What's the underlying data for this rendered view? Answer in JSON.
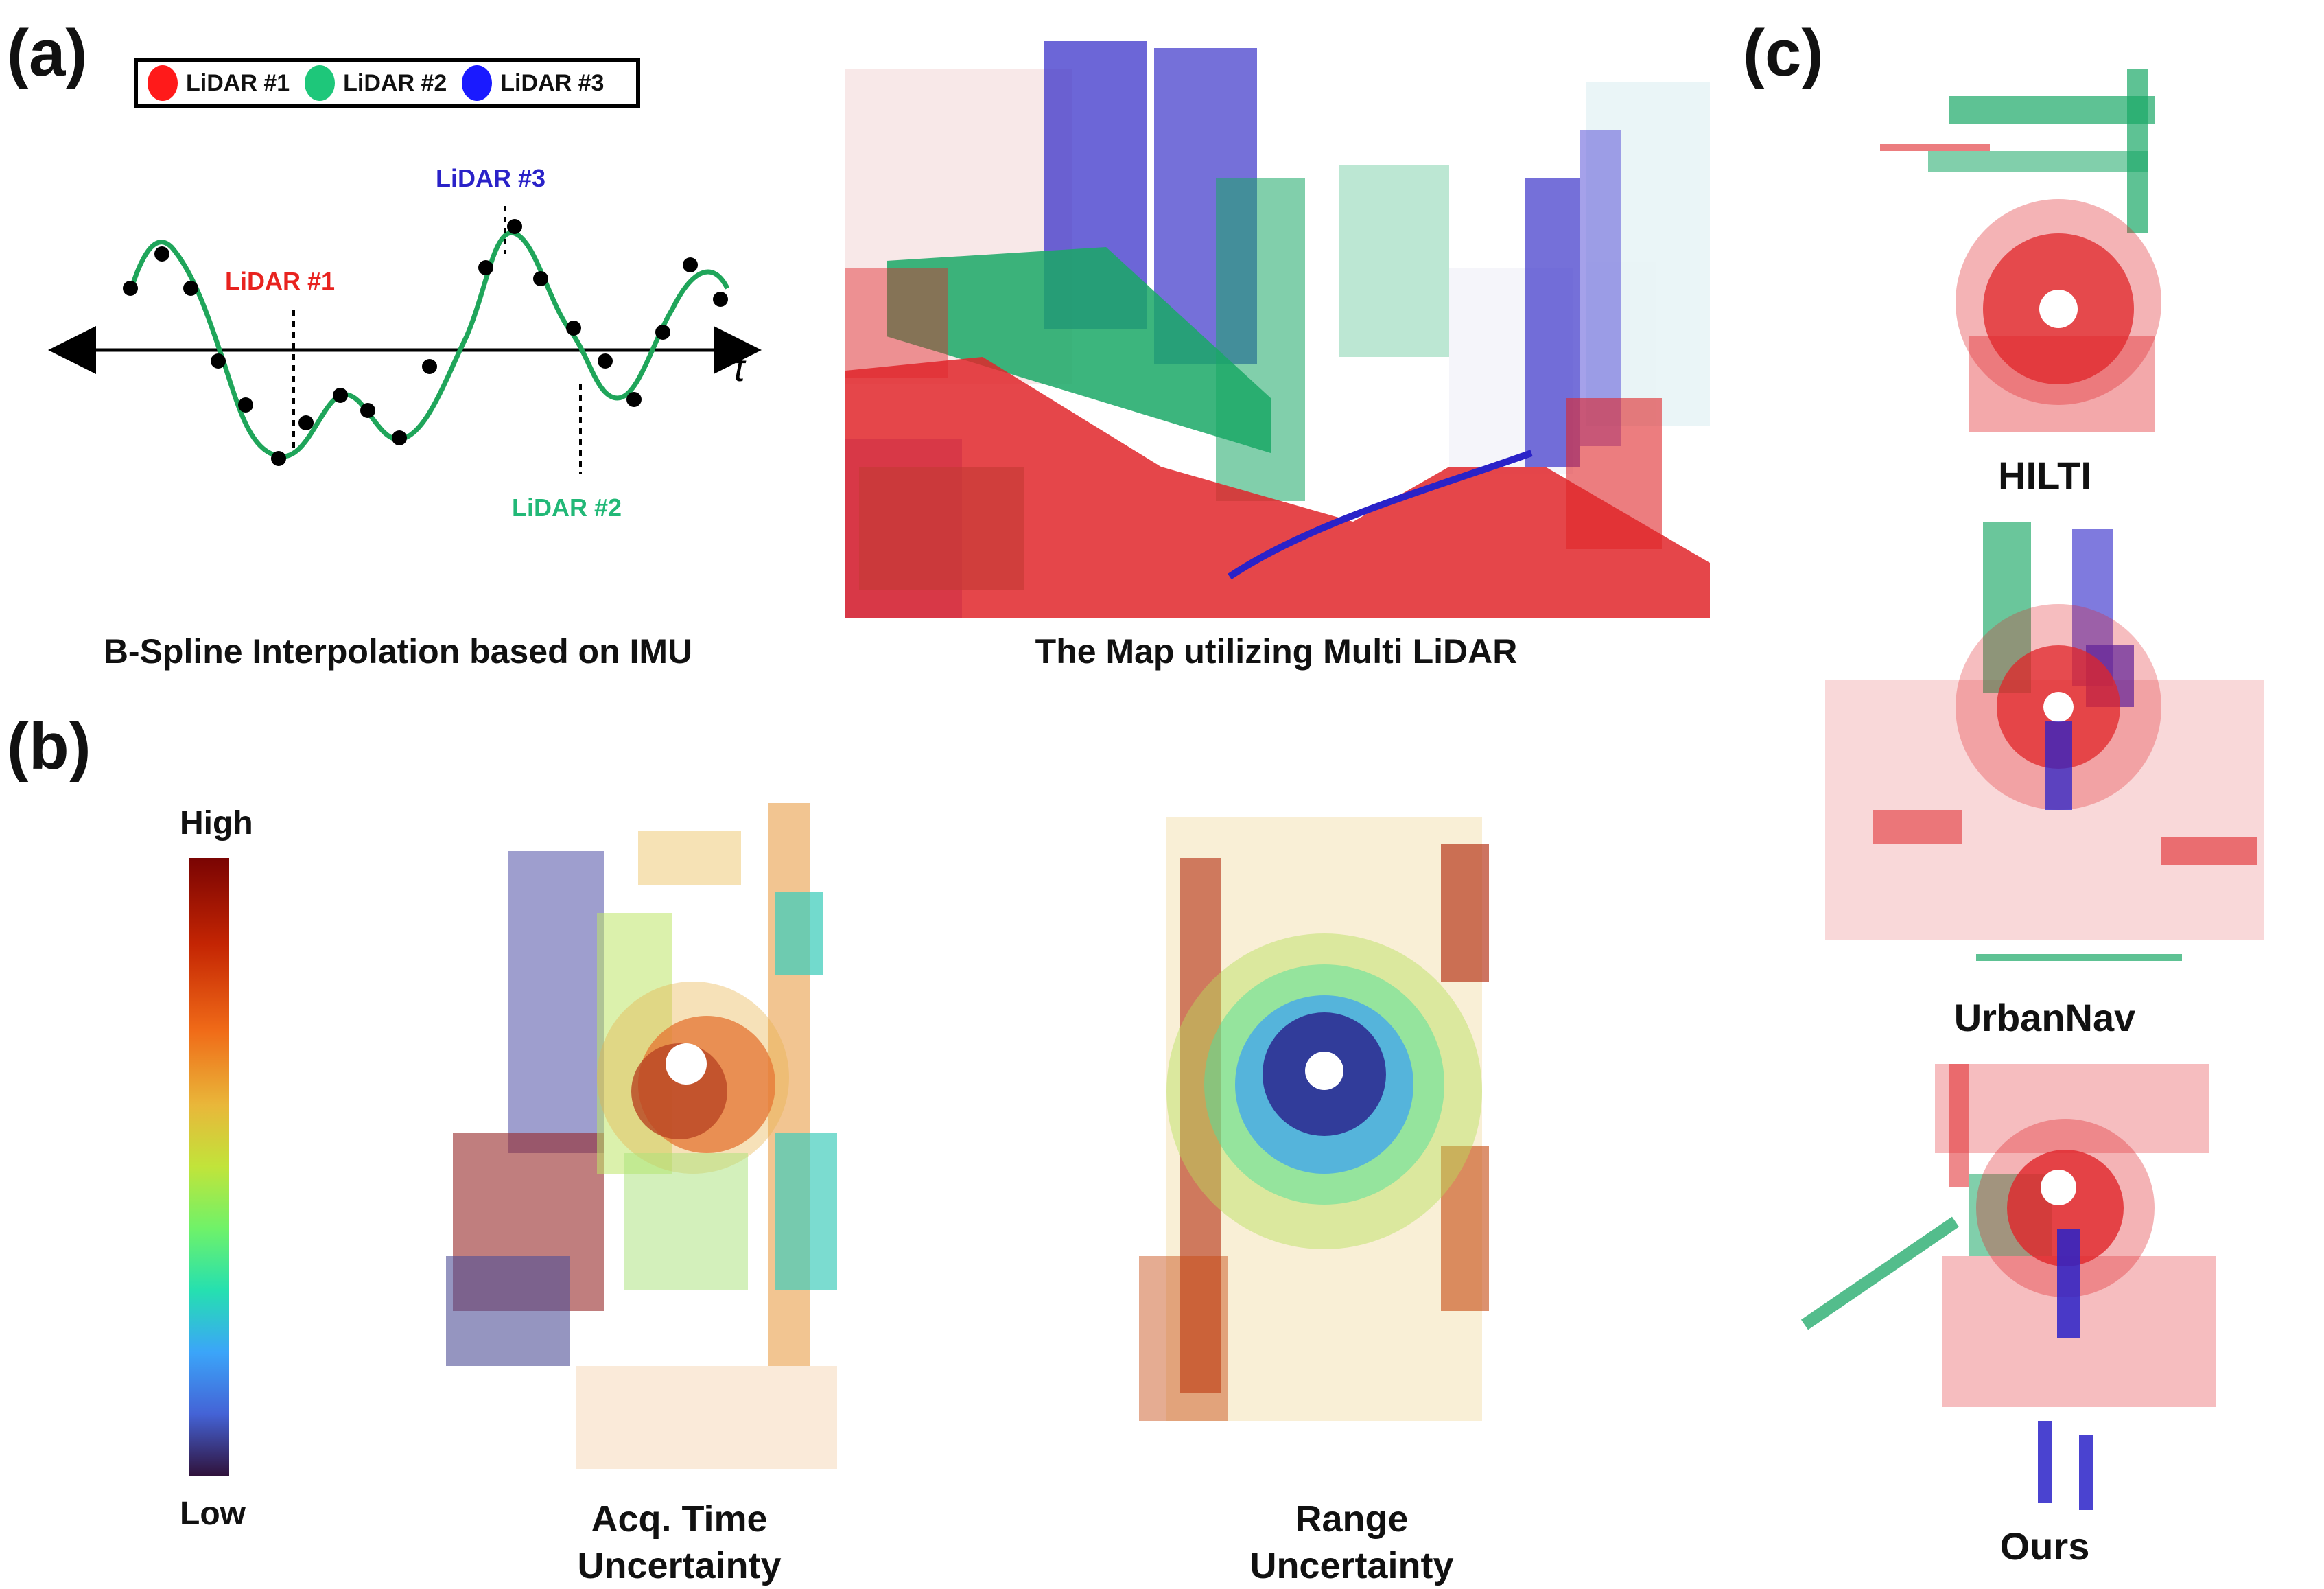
{
  "panels": {
    "a": {
      "label": "(a)",
      "legend": [
        {
          "label": "LiDAR #1",
          "color": "#ff1a1a"
        },
        {
          "label": "LiDAR #2",
          "color": "#1ec77a"
        },
        {
          "label": "LiDAR #3",
          "color": "#1a1aff"
        }
      ],
      "spline": {
        "axis_label": "t",
        "markers": [
          {
            "label": "LiDAR #1",
            "color": "#e8231f"
          },
          {
            "label": "LiDAR #3",
            "color": "#2a22c8"
          },
          {
            "label": "LiDAR #2",
            "color": "#22b877"
          }
        ],
        "caption": "B-Spline Interpolation based on IMU",
        "curve_color": "#1fa55a"
      },
      "map_caption": "The Map utilizing Multi LiDAR"
    },
    "b": {
      "label": "(b)",
      "colorbar": {
        "high": "High",
        "low": "Low"
      },
      "plots": [
        {
          "line1": "Acq. Time",
          "line2": "Uncertainty"
        },
        {
          "line1": "Range",
          "line2": "Uncertainty"
        }
      ]
    },
    "c": {
      "label": "(c)",
      "datasets": [
        "HILTI",
        "UrbanNav",
        "Ours"
      ]
    }
  }
}
